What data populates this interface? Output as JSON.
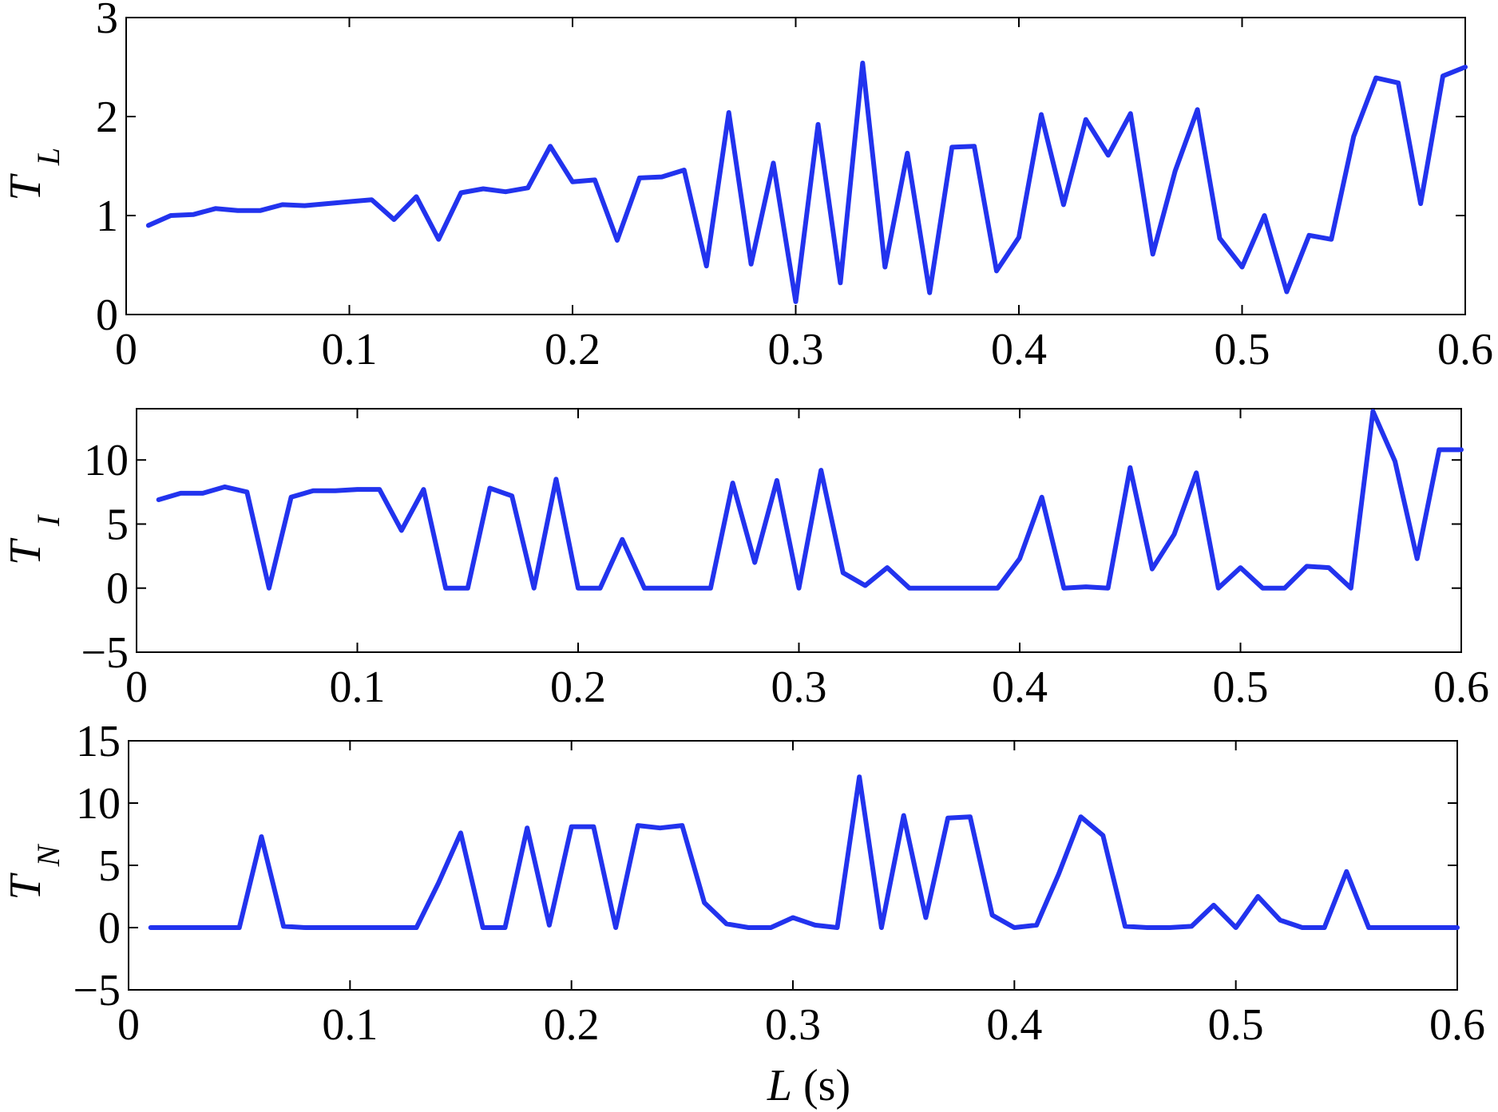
{
  "chart_data": [
    {
      "type": "line",
      "ylabel": "T",
      "ylabel_sub": "L",
      "xlabel": "",
      "xlim": [
        0,
        0.6
      ],
      "ylim": [
        0,
        3
      ],
      "xticks": [
        "0",
        "0.1",
        "0.2",
        "0.3",
        "0.4",
        "0.5",
        "0.6"
      ],
      "yticks": [
        "0",
        "1",
        "2",
        "3"
      ],
      "color": "#2233ee",
      "x": [
        0.01,
        0.02,
        0.03,
        0.04,
        0.05,
        0.06,
        0.07,
        0.08,
        0.09,
        0.1,
        0.11,
        0.12,
        0.13,
        0.14,
        0.15,
        0.16,
        0.17,
        0.18,
        0.19,
        0.2,
        0.21,
        0.22,
        0.23,
        0.24,
        0.25,
        0.26,
        0.27,
        0.28,
        0.29,
        0.3,
        0.31,
        0.32,
        0.33,
        0.34,
        0.35,
        0.36,
        0.37,
        0.38,
        0.39,
        0.4,
        0.41,
        0.42,
        0.43,
        0.44,
        0.45,
        0.46,
        0.47,
        0.48,
        0.49,
        0.5,
        0.51,
        0.52,
        0.53,
        0.54,
        0.55,
        0.56,
        0.57,
        0.58,
        0.59,
        0.6
      ],
      "y": [
        0.9,
        1.0,
        1.01,
        1.07,
        1.05,
        1.05,
        1.11,
        1.1,
        1.12,
        1.14,
        1.16,
        0.96,
        1.19,
        0.76,
        1.23,
        1.27,
        1.24,
        1.28,
        1.7,
        1.34,
        1.36,
        0.75,
        1.38,
        1.39,
        1.46,
        0.49,
        2.04,
        0.51,
        1.53,
        0.13,
        1.92,
        0.32,
        2.54,
        0.48,
        1.63,
        0.22,
        1.69,
        1.7,
        0.44,
        0.78,
        2.02,
        1.11,
        1.97,
        1.61,
        2.03,
        0.61,
        1.45,
        2.07,
        0.77,
        0.48,
        1.0,
        0.23,
        0.8,
        0.76,
        1.8,
        2.39,
        2.34,
        1.12,
        2.41,
        2.5
      ]
    },
    {
      "type": "line",
      "ylabel": "T",
      "ylabel_sub": "I",
      "xlabel": "",
      "xlim": [
        0,
        0.6
      ],
      "ylim": [
        -5,
        14
      ],
      "xticks": [
        "0",
        "0.1",
        "0.2",
        "0.3",
        "0.4",
        "0.5",
        "0.6"
      ],
      "yticks": [
        "−5",
        "0",
        "5",
        "10"
      ],
      "ytick_values": [
        -5,
        0,
        5,
        10
      ],
      "color": "#2233ee",
      "x": [
        0.01,
        0.02,
        0.03,
        0.04,
        0.05,
        0.06,
        0.07,
        0.08,
        0.09,
        0.1,
        0.11,
        0.12,
        0.13,
        0.14,
        0.15,
        0.16,
        0.17,
        0.18,
        0.19,
        0.2,
        0.21,
        0.22,
        0.23,
        0.24,
        0.25,
        0.26,
        0.27,
        0.28,
        0.29,
        0.3,
        0.31,
        0.32,
        0.33,
        0.34,
        0.35,
        0.36,
        0.37,
        0.38,
        0.39,
        0.4,
        0.41,
        0.42,
        0.43,
        0.44,
        0.45,
        0.46,
        0.47,
        0.48,
        0.49,
        0.5,
        0.51,
        0.52,
        0.53,
        0.54,
        0.55,
        0.56,
        0.57,
        0.58,
        0.59,
        0.6
      ],
      "y": [
        6.9,
        7.4,
        7.4,
        7.9,
        7.5,
        0.0,
        7.1,
        7.6,
        7.6,
        7.7,
        7.7,
        4.5,
        7.7,
        0.0,
        0.0,
        7.8,
        7.2,
        0.0,
        8.5,
        0.0,
        0.0,
        3.8,
        0.0,
        0.0,
        0.0,
        0.0,
        8.2,
        2.0,
        8.4,
        0.0,
        9.2,
        1.2,
        0.2,
        1.6,
        0.0,
        0.0,
        0.0,
        0.0,
        0.0,
        2.3,
        7.1,
        0.0,
        0.1,
        0.0,
        9.4,
        1.5,
        4.2,
        9.0,
        0.0,
        1.6,
        0.0,
        0.0,
        1.7,
        1.6,
        0.0,
        13.8,
        9.9,
        2.3,
        10.8,
        10.8
      ]
    },
    {
      "type": "line",
      "ylabel": "T",
      "ylabel_sub": "N",
      "xlabel": "L",
      "xlabel_unit": "(s)",
      "xlim": [
        0,
        0.6
      ],
      "ylim": [
        -5,
        15
      ],
      "xticks": [
        "0",
        "0.1",
        "0.2",
        "0.3",
        "0.4",
        "0.5",
        "0.6"
      ],
      "yticks": [
        "−5",
        "0",
        "5",
        "10",
        "15"
      ],
      "ytick_values": [
        -5,
        0,
        5,
        10,
        15
      ],
      "color": "#2233ee",
      "x": [
        0.01,
        0.02,
        0.03,
        0.04,
        0.05,
        0.06,
        0.07,
        0.08,
        0.09,
        0.1,
        0.11,
        0.12,
        0.13,
        0.14,
        0.15,
        0.16,
        0.17,
        0.18,
        0.19,
        0.2,
        0.21,
        0.22,
        0.23,
        0.24,
        0.25,
        0.26,
        0.27,
        0.28,
        0.29,
        0.3,
        0.31,
        0.32,
        0.33,
        0.34,
        0.35,
        0.36,
        0.37,
        0.38,
        0.39,
        0.4,
        0.41,
        0.42,
        0.43,
        0.44,
        0.45,
        0.46,
        0.47,
        0.48,
        0.49,
        0.5,
        0.51,
        0.52,
        0.53,
        0.54,
        0.55,
        0.56,
        0.57,
        0.58,
        0.59,
        0.6
      ],
      "y": [
        0.0,
        0.0,
        0.0,
        0.0,
        0.0,
        7.3,
        0.1,
        0.0,
        0.0,
        0.0,
        0.0,
        0.0,
        0.0,
        3.6,
        7.6,
        0.0,
        0.0,
        8.0,
        0.2,
        8.1,
        8.1,
        0.0,
        8.2,
        8.0,
        8.2,
        2.0,
        0.3,
        0.0,
        0.0,
        0.8,
        0.2,
        0.0,
        12.1,
        0.0,
        9.0,
        0.8,
        8.8,
        8.9,
        1.0,
        0.0,
        0.2,
        4.3,
        8.9,
        7.4,
        0.1,
        0.0,
        0.0,
        0.1,
        1.8,
        0.0,
        2.5,
        0.6,
        0.0,
        0.0,
        4.5,
        0.0,
        0.0,
        0.0,
        0.0,
        0.0
      ]
    }
  ]
}
